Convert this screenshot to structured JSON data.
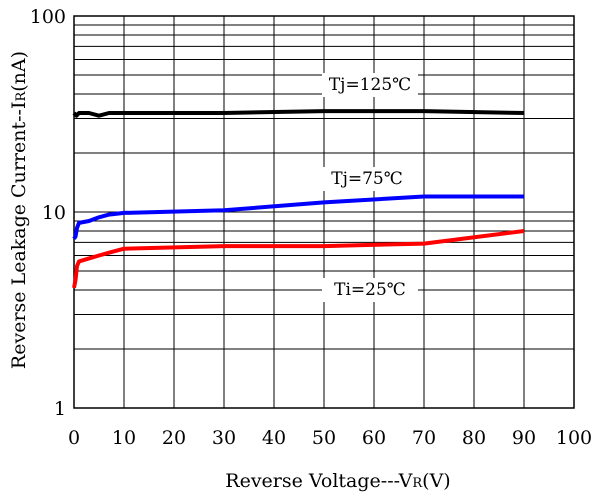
{
  "chart_data": {
    "type": "line",
    "xlabel_main": "Reverse Voltage---V",
    "xlabel_sub": "R",
    "xlabel_tail": "(V)",
    "ylabel_main": "Reverse Leakage Current--I",
    "ylabel_sub": "R",
    "ylabel_tail": "(nA)",
    "xlim": [
      0,
      100
    ],
    "ylim": [
      1,
      100
    ],
    "yscale": "log",
    "grid": true,
    "x_ticks": [
      "0",
      "10",
      "20",
      "30",
      "40",
      "50",
      "60",
      "70",
      "80",
      "90",
      "100"
    ],
    "y_ticks": [
      {
        "value": 1,
        "label": "1"
      },
      {
        "value": 10,
        "label": "10"
      },
      {
        "value": 100,
        "label": "100"
      }
    ],
    "series": [
      {
        "name": "Tj=125℃",
        "color": "#000000",
        "points": [
          [
            0,
            32
          ],
          [
            0.5,
            31
          ],
          [
            1,
            32
          ],
          [
            3,
            32
          ],
          [
            5,
            31
          ],
          [
            7,
            32
          ],
          [
            10,
            32
          ],
          [
            30,
            32
          ],
          [
            50,
            32.7
          ],
          [
            70,
            32.7
          ],
          [
            90,
            32
          ]
        ]
      },
      {
        "name": "Tj=75℃",
        "color": "#0000ff",
        "points": [
          [
            0,
            7.3
          ],
          [
            0.3,
            7.5
          ],
          [
            0.6,
            8.3
          ],
          [
            1,
            8.8
          ],
          [
            3,
            9.0
          ],
          [
            5,
            9.4
          ],
          [
            7,
            9.7
          ],
          [
            10,
            9.9
          ],
          [
            30,
            10.2
          ],
          [
            50,
            11.2
          ],
          [
            70,
            12
          ],
          [
            90,
            12
          ]
        ]
      },
      {
        "name": "Ti=25℃",
        "color": "#ff0000",
        "points": [
          [
            0,
            4.1
          ],
          [
            0.3,
            4.5
          ],
          [
            0.6,
            5.3
          ],
          [
            1,
            5.6
          ],
          [
            3,
            5.8
          ],
          [
            5,
            6.0
          ],
          [
            7,
            6.2
          ],
          [
            10,
            6.5
          ],
          [
            30,
            6.7
          ],
          [
            50,
            6.7
          ],
          [
            70,
            6.9
          ],
          [
            90,
            8.0
          ]
        ]
      }
    ]
  }
}
